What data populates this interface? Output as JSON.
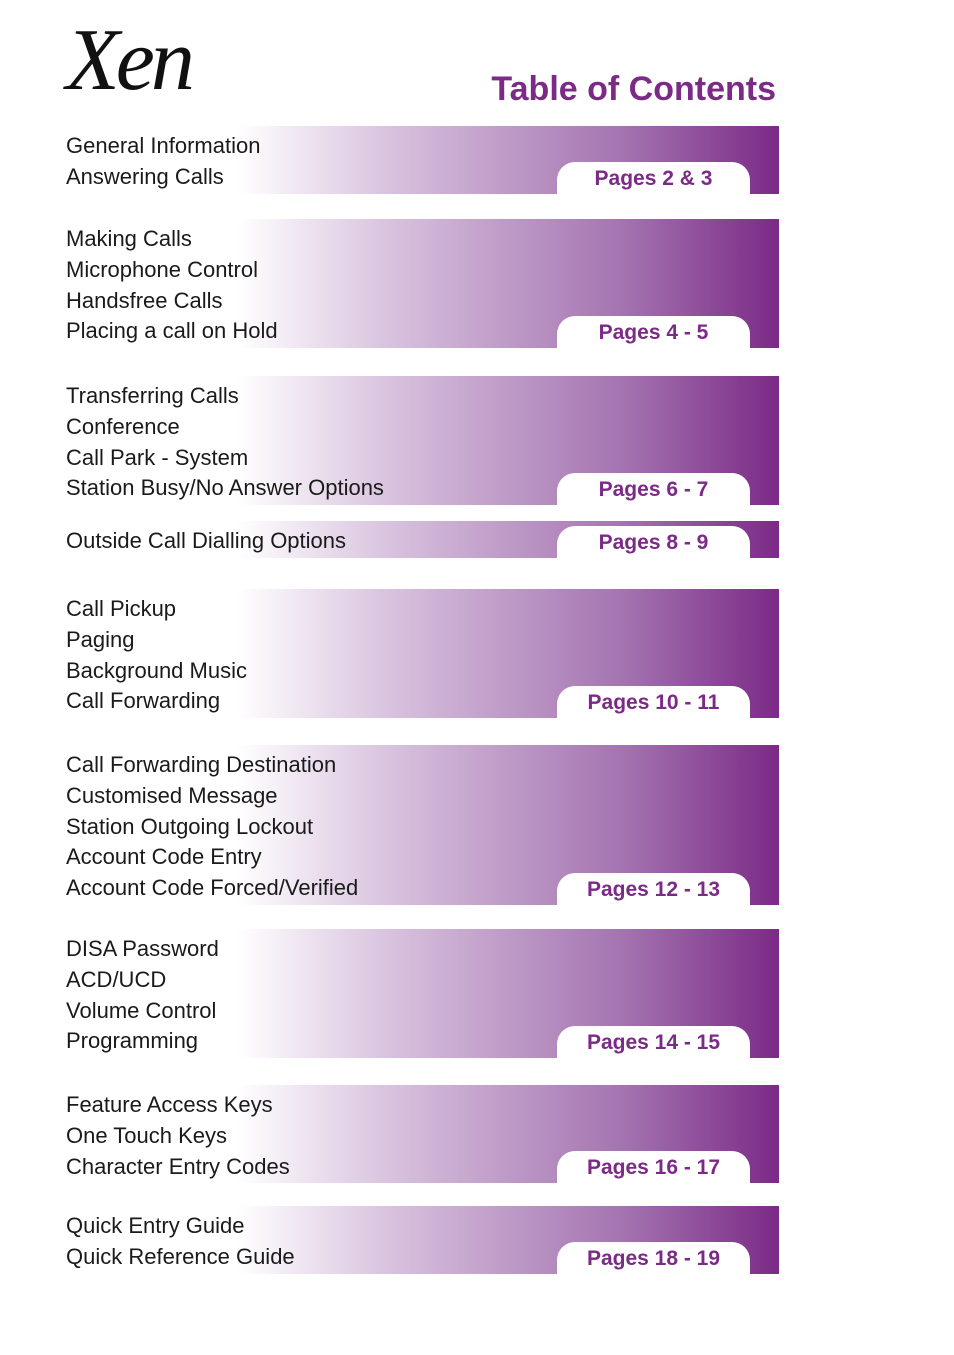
{
  "header": {
    "logo": "Xen",
    "title": "Table of Contents"
  },
  "sections": [
    {
      "items": [
        "General Information",
        "Answering Calls"
      ],
      "pages": "Pages 2 & 3"
    },
    {
      "items": [
        "Making Calls",
        "Microphone Control",
        "Handsfree Calls",
        "Placing a call on Hold"
      ],
      "pages": "Pages 4 - 5"
    },
    {
      "items": [
        "Transferring Calls",
        "Conference",
        "Call Park - System",
        "Station Busy/No Answer Options"
      ],
      "pages": "Pages 6 - 7"
    },
    {
      "items": [
        "Outside Call Dialling Options"
      ],
      "pages": "Pages 8 - 9"
    },
    {
      "items": [
        "Call Pickup",
        "Paging",
        "Background Music",
        "Call Forwarding"
      ],
      "pages": "Pages 10 - 11"
    },
    {
      "items": [
        "Call Forwarding Destination",
        "Customised Message",
        "Station Outgoing Lockout",
        "Account Code Entry",
        "Account Code Forced/Verified"
      ],
      "pages": "Pages 12 - 13"
    },
    {
      "items": [
        "DISA Password",
        "ACD/UCD",
        "Volume Control",
        "Programming"
      ],
      "pages": "Pages 14 - 15"
    },
    {
      "items": [
        "Feature Access Keys",
        "One Touch Keys",
        "Character Entry Codes"
      ],
      "pages": "Pages 16 - 17"
    },
    {
      "items": [
        "Quick Entry Guide",
        "Quick Reference Guide"
      ],
      "pages": "Pages 18 - 19"
    }
  ]
}
